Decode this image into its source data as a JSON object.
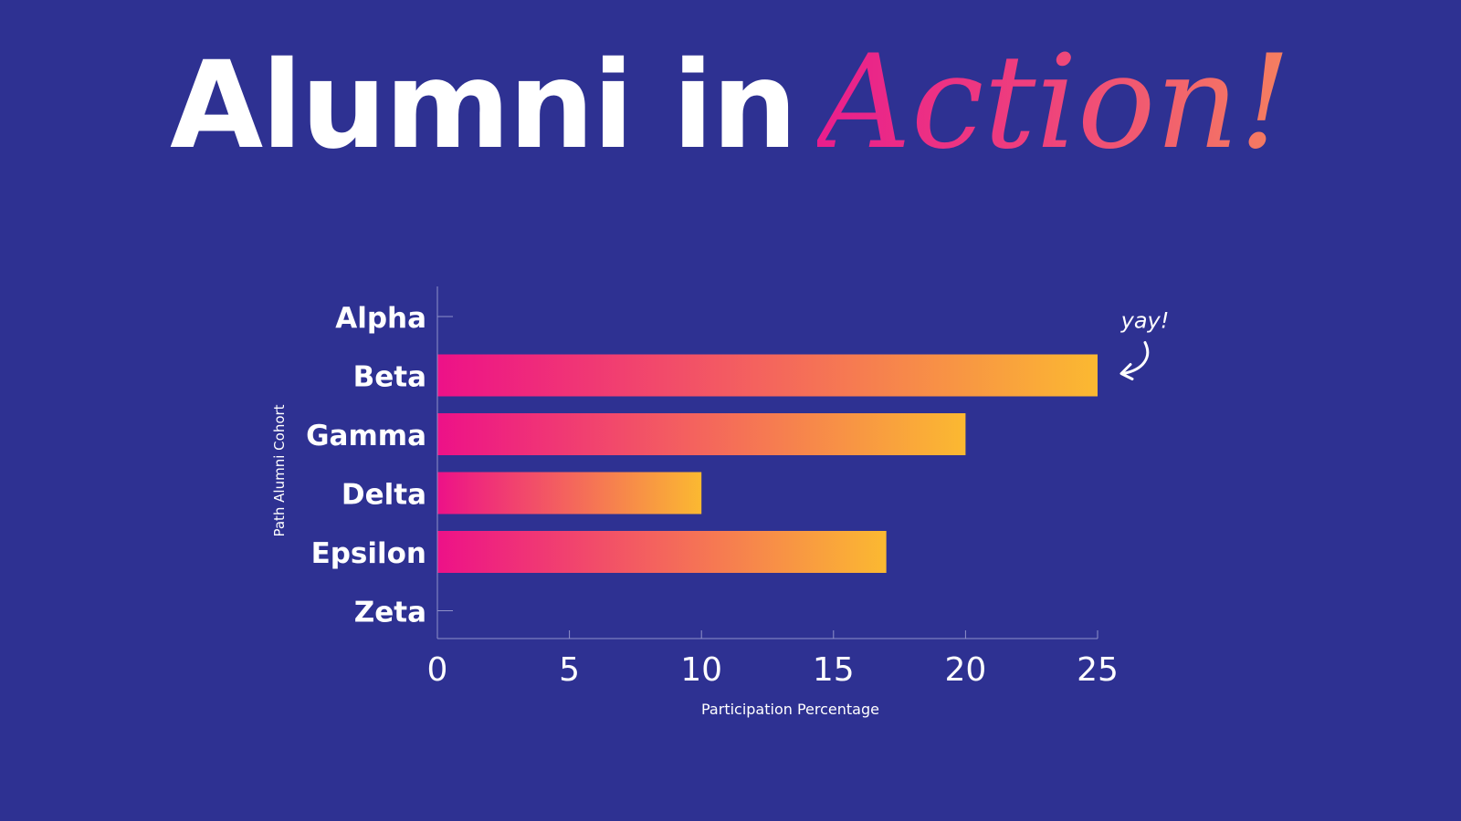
{
  "title": {
    "main": "Alumni in",
    "accent": "Action!"
  },
  "colors": {
    "background": "#2e3192",
    "bar_gradient_start": "#ed1188",
    "bar_gradient_end": "#fbb931",
    "text": "#ffffff",
    "axis": "#8f91c9"
  },
  "chart_data": {
    "type": "bar",
    "orientation": "horizontal",
    "categories": [
      "Alpha",
      "Beta",
      "Gamma",
      "Delta",
      "Epsilon",
      "Zeta"
    ],
    "values": [
      0,
      25,
      20,
      10,
      17,
      0
    ],
    "xlabel": "Participation Percentage",
    "ylabel": "Path Alumni Cohort",
    "xlim": [
      0,
      25
    ],
    "xticks": [
      0,
      5,
      10,
      15,
      20,
      25
    ],
    "grid": false,
    "annotation": {
      "text": "yay!",
      "category": "Beta"
    }
  }
}
